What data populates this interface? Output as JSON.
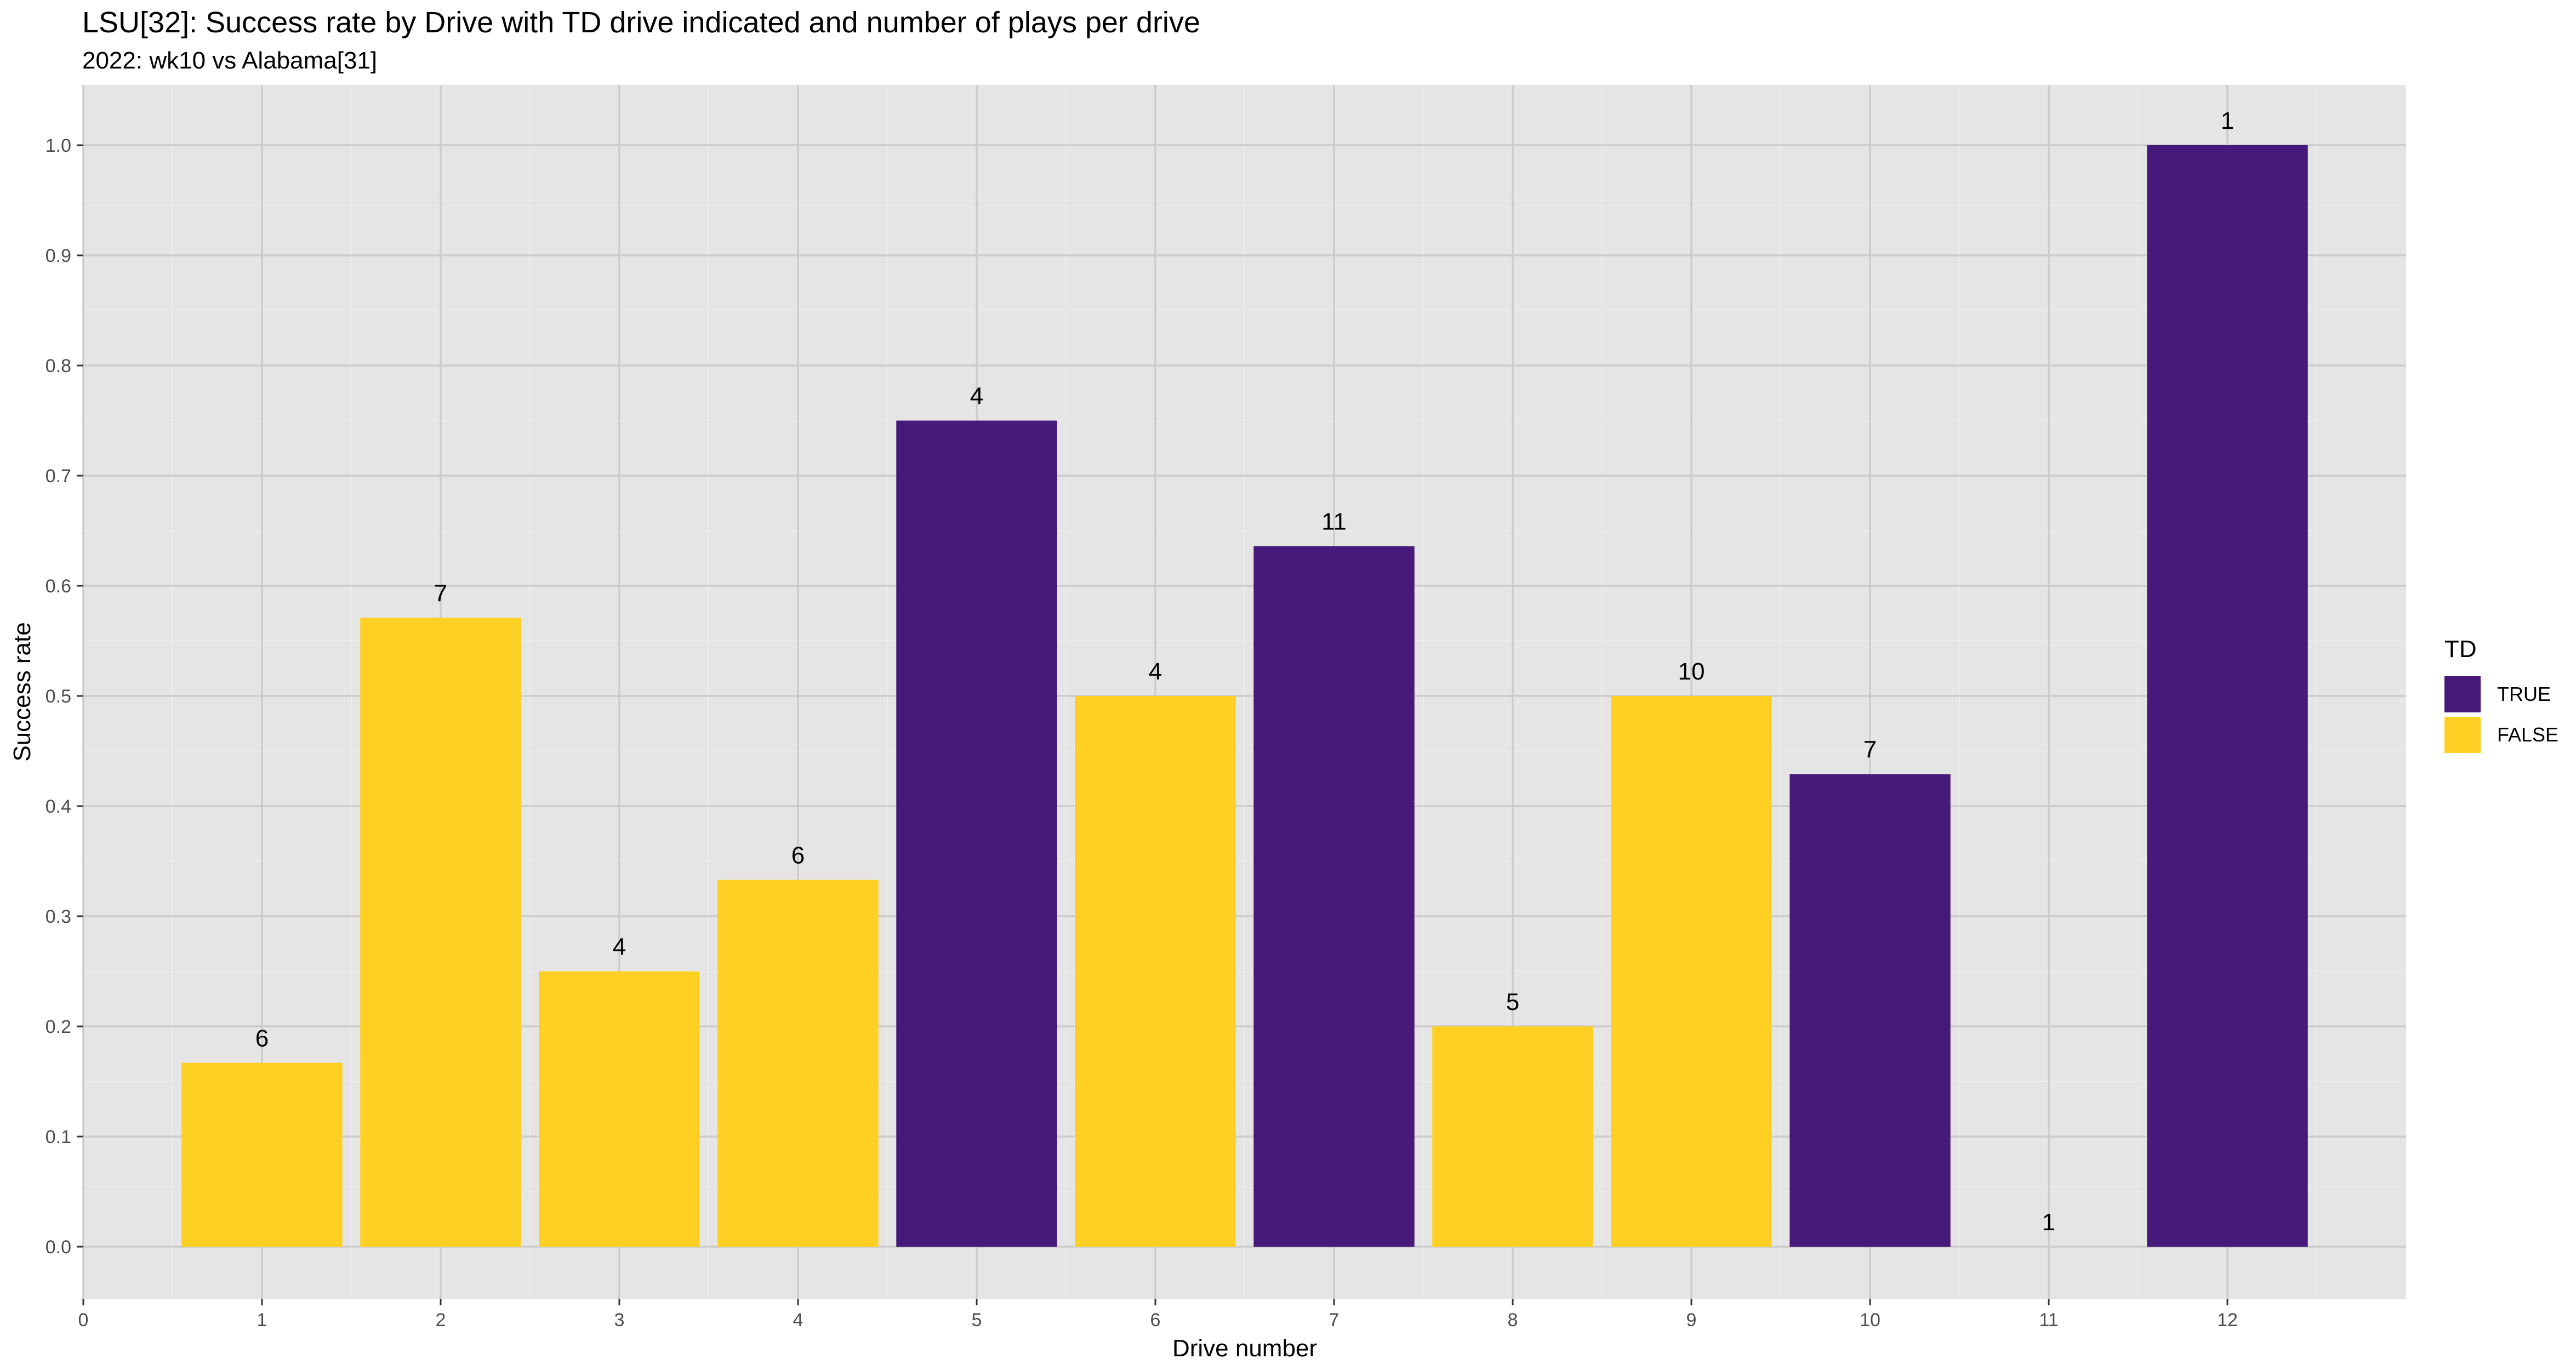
{
  "chart_data": {
    "type": "bar",
    "title": "LSU[32]: Success rate by Drive with TD drive indicated and number of plays per drive",
    "subtitle": "2022: wk10 vs Alabama[31]",
    "xlabel": "Drive number",
    "ylabel": "Success rate",
    "xlim": [
      0,
      13
    ],
    "ylim": [
      0,
      1.0
    ],
    "x_ticks": [
      0,
      1,
      2,
      3,
      4,
      5,
      6,
      7,
      8,
      9,
      10,
      11,
      12
    ],
    "y_ticks": [
      0.0,
      0.1,
      0.2,
      0.3,
      0.4,
      0.5,
      0.6,
      0.7,
      0.8,
      0.9,
      1.0
    ],
    "y_tick_labels": [
      "0.0",
      "0.1",
      "0.2",
      "0.3",
      "0.4",
      "0.5",
      "0.6",
      "0.7",
      "0.8",
      "0.9",
      "1.0"
    ],
    "grid": true,
    "legend": {
      "title": "TD",
      "placement": "right",
      "entries": [
        {
          "label": "TRUE",
          "color": "#46197a"
        },
        {
          "label": "FALSE",
          "color": "#fdd023"
        }
      ]
    },
    "bars": [
      {
        "drive": 1,
        "success_rate": 0.167,
        "td": "FALSE",
        "plays": "6"
      },
      {
        "drive": 2,
        "success_rate": 0.571,
        "td": "FALSE",
        "plays": "7"
      },
      {
        "drive": 3,
        "success_rate": 0.25,
        "td": "FALSE",
        "plays": "4"
      },
      {
        "drive": 4,
        "success_rate": 0.333,
        "td": "FALSE",
        "plays": "6"
      },
      {
        "drive": 5,
        "success_rate": 0.75,
        "td": "TRUE",
        "plays": "4"
      },
      {
        "drive": 6,
        "success_rate": 0.5,
        "td": "FALSE",
        "plays": "4"
      },
      {
        "drive": 7,
        "success_rate": 0.636,
        "td": "TRUE",
        "plays": "11"
      },
      {
        "drive": 8,
        "success_rate": 0.2,
        "td": "FALSE",
        "plays": "5"
      },
      {
        "drive": 9,
        "success_rate": 0.5,
        "td": "FALSE",
        "plays": "10"
      },
      {
        "drive": 10,
        "success_rate": 0.429,
        "td": "TRUE",
        "plays": "7"
      },
      {
        "drive": 11,
        "success_rate": 0.0,
        "td": "FALSE",
        "plays": "1"
      },
      {
        "drive": 12,
        "success_rate": 1.0,
        "td": "TRUE",
        "plays": "1"
      }
    ],
    "colors": {
      "panel": "#e5e5e5",
      "grid": "#cccccc",
      "TRUE": "#46197a",
      "FALSE": "#fdd023"
    }
  }
}
